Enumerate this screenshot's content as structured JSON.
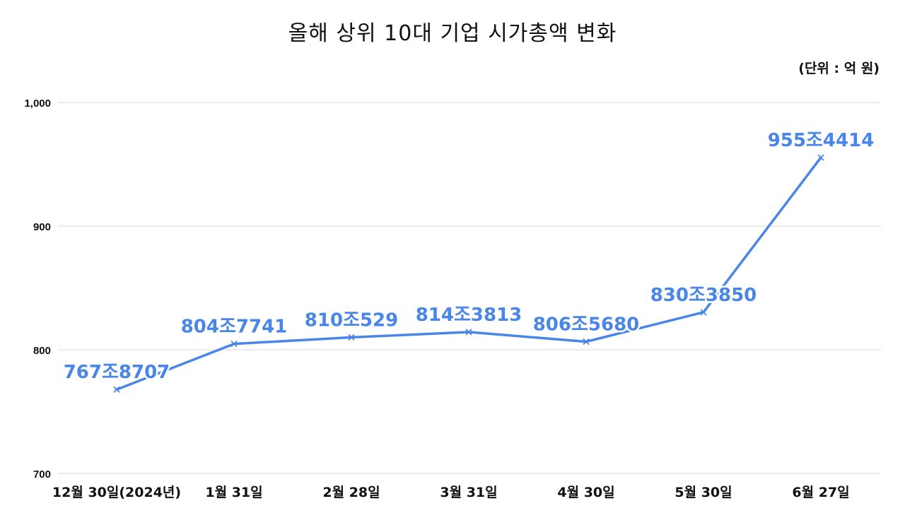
{
  "chart_data": {
    "type": "line",
    "title": "올해 상위 10대 기업 시가총액 변화",
    "unit_note": "(단위 : 억 원)",
    "categories": [
      "12월 30일(2024년)",
      "1월 31일",
      "2월 28일",
      "3월 31일",
      "4월 30일",
      "5월 30일",
      "6월 27일"
    ],
    "series": [
      {
        "values": [
          767.8707,
          804.7741,
          810.0529,
          814.3813,
          806.568,
          830.385,
          955.4414
        ],
        "data_labels": [
          "767조8707",
          "804조7741",
          "810조529",
          "814조3813",
          "806조5680",
          "830조3850",
          "955조4414"
        ]
      }
    ],
    "ylim": [
      700,
      1000
    ],
    "yticks": [
      700,
      800,
      900,
      1000
    ],
    "ytick_labels": [
      "700",
      "800",
      "900",
      "1,000"
    ],
    "xlabel": "",
    "ylabel": "",
    "grid": true,
    "legend": "none",
    "line_color": "#4a86e8",
    "label_color": "#4a86e8",
    "grid_color": "#d9d9d9",
    "marker": "x"
  }
}
